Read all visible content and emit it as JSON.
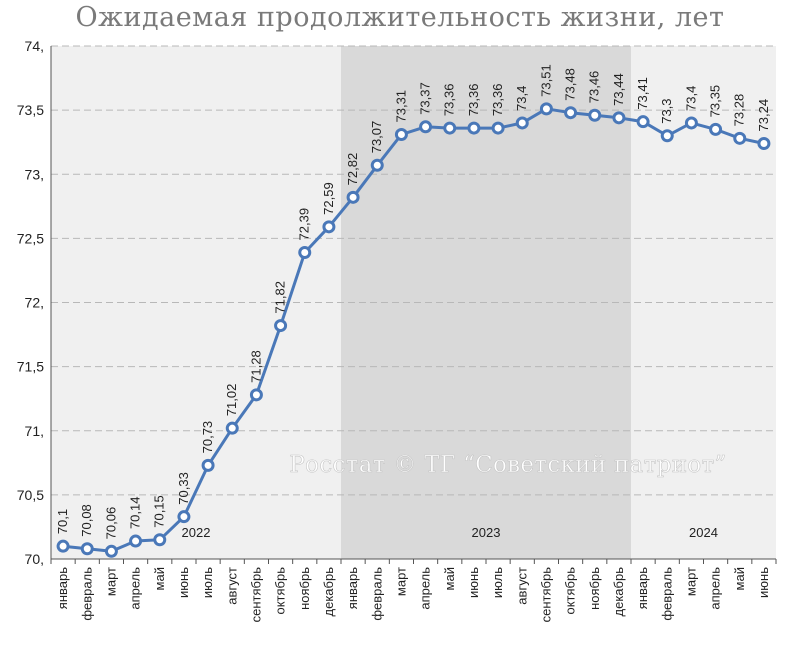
{
  "chart_data": {
    "type": "line",
    "title": "Ожидаемая продолжительность жизни, лет",
    "watermark": "Росстат © ТГ “Советский патриот”",
    "ylim": [
      70,
      74
    ],
    "yticks": [
      70,
      70.5,
      71,
      71.5,
      72,
      72.5,
      73,
      73.5,
      74
    ],
    "ytick_labels": [
      "70,",
      "70,5",
      "71,",
      "71,5",
      "72,",
      "72,5",
      "73,",
      "73,5",
      "74,"
    ],
    "grid": "horizontal dashed",
    "categories": [
      "январь",
      "февраль",
      "март",
      "апрель",
      "май",
      "июнь",
      "июль",
      "август",
      "сентябрь",
      "октябрь",
      "ноябрь",
      "декабрь",
      "январь",
      "февраль",
      "март",
      "апрель",
      "май",
      "июнь",
      "июль",
      "август",
      "сентябрь",
      "октябрь",
      "ноябрь",
      "декабрь",
      "январь",
      "февраль",
      "март",
      "апрель",
      "май",
      "июнь"
    ],
    "values": [
      70.1,
      70.08,
      70.06,
      70.14,
      70.15,
      70.33,
      70.73,
      71.02,
      71.28,
      71.82,
      72.39,
      72.59,
      72.82,
      73.07,
      73.31,
      73.37,
      73.36,
      73.36,
      73.36,
      73.4,
      73.51,
      73.48,
      73.46,
      73.44,
      73.41,
      73.3,
      73.4,
      73.35,
      73.28,
      73.24
    ],
    "data_labels": [
      "70,1",
      "70,08",
      "70,06",
      "70,14",
      "70,15",
      "70,33",
      "70,73",
      "71,02",
      "71,28",
      "71,82",
      "72,39",
      "72,59",
      "72,82",
      "73,07",
      "73,31",
      "73,37",
      "73,36",
      "73,36",
      "73,36",
      "73,4",
      "73,51",
      "73,48",
      "73,46",
      "73,44",
      "73,41",
      "73,3",
      "73,4",
      "73,35",
      "73,28",
      "73,24"
    ],
    "periods": [
      {
        "label": "2022",
        "start_index": 0,
        "end_index": 11,
        "shade": "#f0f0f0"
      },
      {
        "label": "2023",
        "start_index": 12,
        "end_index": 23,
        "shade": "#d9d9d9"
      },
      {
        "label": "2024",
        "start_index": 24,
        "end_index": 29,
        "shade": "#f0f0f0"
      }
    ],
    "colors": {
      "line": "#4a78b8",
      "marker_fill": "#ffffff",
      "marker_stroke": "#4a78b8",
      "grid": "#b8b8b8"
    }
  }
}
